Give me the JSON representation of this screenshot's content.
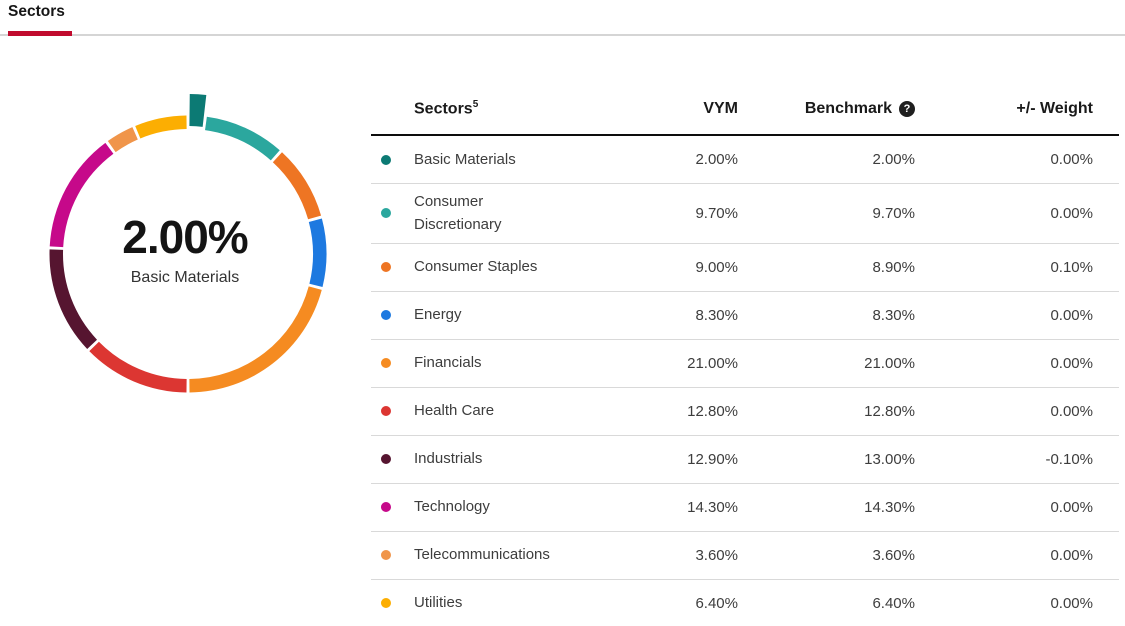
{
  "page": {
    "tab_label": "Sectors"
  },
  "colors": {
    "accent_red": "#c10b2e",
    "tab_track_gray": "#d5d5d5",
    "header_border": "#0d0d0d",
    "row_divider": "#d9d9d9",
    "text_dark": "#1a1a1a",
    "text_body": "#3d3d3d"
  },
  "chart_data": {
    "type": "donut",
    "title": "Sector weights of VYM",
    "legend_position": "table-right",
    "center": {
      "value": "2.00%",
      "label": "Basic Materials"
    },
    "unit": "percent",
    "segments": [
      {
        "label": "Basic Materials",
        "value": 2.0,
        "color": "#0c7a74",
        "exploded": true
      },
      {
        "label": "Consumer Discretionary",
        "value": 9.7,
        "color": "#2ba79e",
        "exploded": false
      },
      {
        "label": "Consumer Staples",
        "value": 9.0,
        "color": "#ee7523",
        "exploded": false
      },
      {
        "label": "Energy",
        "value": 8.3,
        "color": "#1d79e0",
        "exploded": false
      },
      {
        "label": "Financials",
        "value": 21.0,
        "color": "#f58b21",
        "exploded": false
      },
      {
        "label": "Health Care",
        "value": 12.8,
        "color": "#dc3632",
        "exploded": false
      },
      {
        "label": "Industrials",
        "value": 12.9,
        "color": "#561530",
        "exploded": false
      },
      {
        "label": "Technology",
        "value": 14.3,
        "color": "#c6098a",
        "exploded": false
      },
      {
        "label": "Telecommunications",
        "value": 3.6,
        "color": "#f0954a",
        "exploded": false
      },
      {
        "label": "Utilities",
        "value": 6.4,
        "color": "#fcae02",
        "exploded": false
      }
    ]
  },
  "table": {
    "headers": {
      "sector": "Sectors",
      "sector_sup": "5",
      "vym": "VYM",
      "benchmark": "Benchmark",
      "help_glyph": "?",
      "weight": "+/- Weight"
    },
    "rows": [
      {
        "sector": "Basic Materials",
        "color": "#0c7a74",
        "vym": "2.00%",
        "benchmark": "2.00%",
        "weight": "0.00%"
      },
      {
        "sector": "Consumer Discretionary",
        "color": "#2ba79e",
        "vym": "9.70%",
        "benchmark": "9.70%",
        "weight": "0.00%"
      },
      {
        "sector": "Consumer Staples",
        "color": "#ee7523",
        "vym": "9.00%",
        "benchmark": "8.90%",
        "weight": "0.10%"
      },
      {
        "sector": "Energy",
        "color": "#1d79e0",
        "vym": "8.30%",
        "benchmark": "8.30%",
        "weight": "0.00%"
      },
      {
        "sector": "Financials",
        "color": "#f58b21",
        "vym": "21.00%",
        "benchmark": "21.00%",
        "weight": "0.00%"
      },
      {
        "sector": "Health Care",
        "color": "#dc3632",
        "vym": "12.80%",
        "benchmark": "12.80%",
        "weight": "0.00%"
      },
      {
        "sector": "Industrials",
        "color": "#561530",
        "vym": "12.90%",
        "benchmark": "13.00%",
        "weight": "-0.10%"
      },
      {
        "sector": "Technology",
        "color": "#c6098a",
        "vym": "14.30%",
        "benchmark": "14.30%",
        "weight": "0.00%"
      },
      {
        "sector": "Telecommunications",
        "color": "#f0954a",
        "vym": "3.60%",
        "benchmark": "3.60%",
        "weight": "0.00%"
      },
      {
        "sector": "Utilities",
        "color": "#fcae02",
        "vym": "6.40%",
        "benchmark": "6.40%",
        "weight": "0.00%"
      }
    ]
  }
}
